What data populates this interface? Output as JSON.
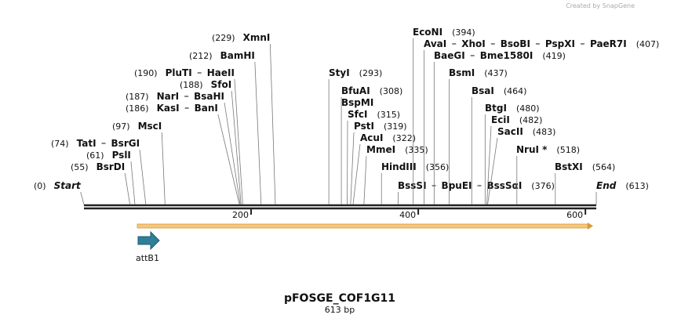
{
  "branding": "Created by SnapGene",
  "map": {
    "title": "pFOSGE_COF1G11",
    "length": {
      "value": 613,
      "label": "613 bp"
    },
    "ruler": [
      200,
      400,
      600
    ],
    "features": [
      {
        "name": "attB1"
      }
    ],
    "sites": [
      {
        "names": [
          "Start"
        ],
        "pos": {
          "value": 0,
          "label": "(0)"
        }
      },
      {
        "names": [
          "BsrDI"
        ],
        "pos": {
          "value": 55,
          "label": "(55)"
        }
      },
      {
        "names": [
          "PslI"
        ],
        "pos": {
          "value": 61,
          "label": "(61)"
        }
      },
      {
        "names": [
          "TatI",
          "BsrGI"
        ],
        "pos": {
          "value": 74,
          "label": "(74)"
        }
      },
      {
        "names": [
          "MscI"
        ],
        "pos": {
          "value": 97,
          "label": "(97)"
        }
      },
      {
        "names": [
          "KasI",
          "BanI"
        ],
        "pos": {
          "value": 186,
          "label": "(186)"
        }
      },
      {
        "names": [
          "NarI",
          "BsaHI"
        ],
        "pos": {
          "value": 187,
          "label": "(187)"
        }
      },
      {
        "names": [
          "SfoI"
        ],
        "pos": {
          "value": 188,
          "label": "(188)"
        }
      },
      {
        "names": [
          "PluTI",
          "HaeII"
        ],
        "pos": {
          "value": 190,
          "label": "(190)"
        }
      },
      {
        "names": [
          "BamHI"
        ],
        "pos": {
          "value": 212,
          "label": "(212)"
        }
      },
      {
        "names": [
          "XmnI"
        ],
        "pos": {
          "value": 229,
          "label": "(229)"
        }
      },
      {
        "names": [
          "StyI"
        ],
        "pos": {
          "value": 293,
          "label": "(293)"
        }
      },
      {
        "names": [
          "BfuAI"
        ],
        "pos": {
          "value": 308,
          "label": "(308)"
        }
      },
      {
        "names": [
          "BspMI"
        ]
      },
      {
        "names": [
          "SfcI"
        ],
        "pos": {
          "value": 315,
          "label": "(315)"
        }
      },
      {
        "names": [
          "PstI"
        ],
        "pos": {
          "value": 319,
          "label": "(319)"
        }
      },
      {
        "names": [
          "AcuI"
        ],
        "pos": {
          "value": 322,
          "label": "(322)"
        }
      },
      {
        "names": [
          "MmeI"
        ],
        "pos": {
          "value": 335,
          "label": "(335)"
        }
      },
      {
        "names": [
          "HindIII"
        ],
        "pos": {
          "value": 356,
          "label": "(356)"
        }
      },
      {
        "names": [
          "BssSI",
          "BpuEI",
          "BssSαI"
        ],
        "pos": {
          "value": 376,
          "label": "(376)"
        }
      },
      {
        "names": [
          "EcoNI"
        ],
        "pos": {
          "value": 394,
          "label": "(394)"
        }
      },
      {
        "names": [
          "AvaI",
          "XhoI",
          "BsoBI",
          "PspXI",
          "PaeR7I"
        ],
        "pos": {
          "value": 407,
          "label": "(407)"
        }
      },
      {
        "names": [
          "BaeGI",
          "Bme1580I"
        ],
        "pos": {
          "value": 419,
          "label": "(419)"
        }
      },
      {
        "names": [
          "BsmI"
        ],
        "pos": {
          "value": 437,
          "label": "(437)"
        }
      },
      {
        "names": [
          "BsaI"
        ],
        "pos": {
          "value": 464,
          "label": "(464)"
        }
      },
      {
        "names": [
          "BtgI"
        ],
        "pos": {
          "value": 480,
          "label": "(480)"
        }
      },
      {
        "names": [
          "EciI"
        ],
        "pos": {
          "value": 482,
          "label": "(482)"
        }
      },
      {
        "names": [
          "SacII"
        ],
        "pos": {
          "value": 483,
          "label": "(483)"
        }
      },
      {
        "names": [
          "NruI *"
        ],
        "pos": {
          "value": 518,
          "label": "(518)"
        }
      },
      {
        "names": [
          "BstXI"
        ],
        "pos": {
          "value": 564,
          "label": "(564)"
        }
      },
      {
        "names": [
          "End"
        ],
        "pos": {
          "value": 613,
          "label": "(613)"
        }
      }
    ]
  }
}
